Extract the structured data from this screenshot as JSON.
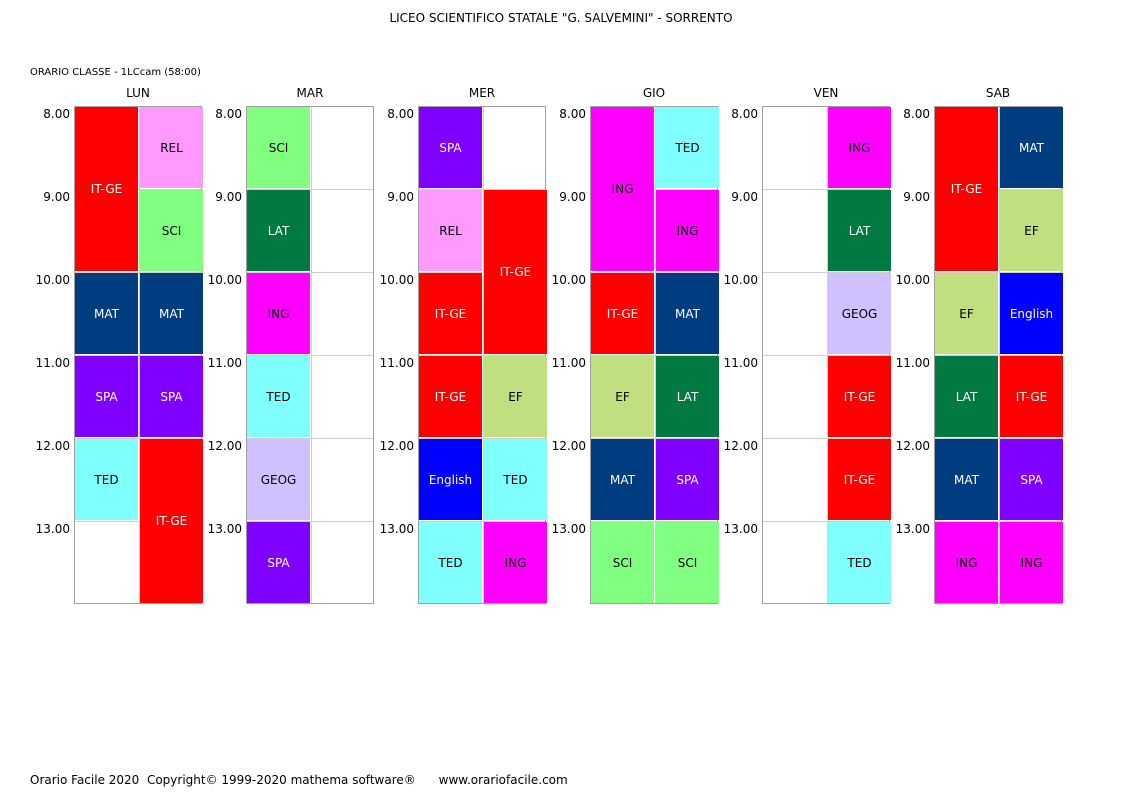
{
  "header": {
    "title": "LICEO SCIENTIFICO STATALE \"G. SALVEMINI\" - SORRENTO",
    "subtitle": "ORARIO CLASSE  -  1LCcam (58:00)"
  },
  "times": [
    "8.00",
    "9.00",
    "10.00",
    "11.00",
    "12.00",
    "13.00"
  ],
  "colors": {
    "IT-GE": {
      "bg": "#ff0000",
      "fg": "#ffffff"
    },
    "REL": {
      "bg": "#ff99ff",
      "fg": "#000000"
    },
    "SCI": {
      "bg": "#80ff80",
      "fg": "#000000"
    },
    "MAT": {
      "bg": "#003c80",
      "fg": "#ffffff"
    },
    "SPA": {
      "bg": "#8000ff",
      "fg": "#ffffff"
    },
    "TED": {
      "bg": "#80ffff",
      "fg": "#000000"
    },
    "LAT": {
      "bg": "#007a40",
      "fg": "#ffffff"
    },
    "ING": {
      "bg": "#ff00ff",
      "fg": "#000000"
    },
    "GEOG": {
      "bg": "#d0c0ff",
      "fg": "#000000"
    },
    "EF": {
      "bg": "#c0e080",
      "fg": "#000000"
    },
    "English": {
      "bg": "#0000ff",
      "fg": "#ffffff"
    }
  },
  "days": [
    {
      "name": "LUN",
      "lessons": [
        {
          "subject": "IT-GE",
          "col": 0,
          "start": 0,
          "span": 2
        },
        {
          "subject": "REL",
          "col": 1,
          "start": 0,
          "span": 1
        },
        {
          "subject": "SCI",
          "col": 1,
          "start": 1,
          "span": 1
        },
        {
          "subject": "MAT",
          "col": 0,
          "start": 2,
          "span": 1
        },
        {
          "subject": "MAT",
          "col": 1,
          "start": 2,
          "span": 1
        },
        {
          "subject": "SPA",
          "col": 0,
          "start": 3,
          "span": 1
        },
        {
          "subject": "SPA",
          "col": 1,
          "start": 3,
          "span": 1
        },
        {
          "subject": "TED",
          "col": 0,
          "start": 4,
          "span": 1
        },
        {
          "subject": "IT-GE",
          "col": 1,
          "start": 4,
          "span": 2
        }
      ]
    },
    {
      "name": "MAR",
      "lessons": [
        {
          "subject": "SCI",
          "col": 0,
          "start": 0,
          "span": 1
        },
        {
          "subject": "LAT",
          "col": 0,
          "start": 1,
          "span": 1
        },
        {
          "subject": "ING",
          "col": 0,
          "start": 2,
          "span": 1
        },
        {
          "subject": "TED",
          "col": 0,
          "start": 3,
          "span": 1
        },
        {
          "subject": "GEOG",
          "col": 0,
          "start": 4,
          "span": 1
        },
        {
          "subject": "SPA",
          "col": 0,
          "start": 5,
          "span": 1
        }
      ]
    },
    {
      "name": "MER",
      "lessons": [
        {
          "subject": "SPA",
          "col": 0,
          "start": 0,
          "span": 1
        },
        {
          "subject": "REL",
          "col": 0,
          "start": 1,
          "span": 1
        },
        {
          "subject": "IT-GE",
          "col": 1,
          "start": 1,
          "span": 2
        },
        {
          "subject": "IT-GE",
          "col": 0,
          "start": 2,
          "span": 1
        },
        {
          "subject": "IT-GE",
          "col": 0,
          "start": 3,
          "span": 1
        },
        {
          "subject": "EF",
          "col": 1,
          "start": 3,
          "span": 1
        },
        {
          "subject": "English",
          "col": 0,
          "start": 4,
          "span": 1
        },
        {
          "subject": "TED",
          "col": 1,
          "start": 4,
          "span": 1
        },
        {
          "subject": "TED",
          "col": 0,
          "start": 5,
          "span": 1
        },
        {
          "subject": "ING",
          "col": 1,
          "start": 5,
          "span": 1
        }
      ]
    },
    {
      "name": "GIO",
      "lessons": [
        {
          "subject": "ING",
          "col": 0,
          "start": 0,
          "span": 2
        },
        {
          "subject": "TED",
          "col": 1,
          "start": 0,
          "span": 1
        },
        {
          "subject": "ING",
          "col": 1,
          "start": 1,
          "span": 1
        },
        {
          "subject": "IT-GE",
          "col": 0,
          "start": 2,
          "span": 1
        },
        {
          "subject": "MAT",
          "col": 1,
          "start": 2,
          "span": 1
        },
        {
          "subject": "EF",
          "col": 0,
          "start": 3,
          "span": 1
        },
        {
          "subject": "LAT",
          "col": 1,
          "start": 3,
          "span": 1
        },
        {
          "subject": "MAT",
          "col": 0,
          "start": 4,
          "span": 1
        },
        {
          "subject": "SPA",
          "col": 1,
          "start": 4,
          "span": 1
        },
        {
          "subject": "SCI",
          "col": 0,
          "start": 5,
          "span": 1
        },
        {
          "subject": "SCI",
          "col": 1,
          "start": 5,
          "span": 1
        }
      ]
    },
    {
      "name": "VEN",
      "lessons": [
        {
          "subject": "ING",
          "col": 1,
          "start": 0,
          "span": 1
        },
        {
          "subject": "LAT",
          "col": 1,
          "start": 1,
          "span": 1
        },
        {
          "subject": "GEOG",
          "col": 1,
          "start": 2,
          "span": 1
        },
        {
          "subject": "IT-GE",
          "col": 1,
          "start": 3,
          "span": 1
        },
        {
          "subject": "IT-GE",
          "col": 1,
          "start": 4,
          "span": 1
        },
        {
          "subject": "TED",
          "col": 1,
          "start": 5,
          "span": 1
        }
      ]
    },
    {
      "name": "SAB",
      "lessons": [
        {
          "subject": "IT-GE",
          "col": 0,
          "start": 0,
          "span": 2
        },
        {
          "subject": "MAT",
          "col": 1,
          "start": 0,
          "span": 1
        },
        {
          "subject": "EF",
          "col": 1,
          "start": 1,
          "span": 1
        },
        {
          "subject": "EF",
          "col": 0,
          "start": 2,
          "span": 1
        },
        {
          "subject": "English",
          "col": 1,
          "start": 2,
          "span": 1
        },
        {
          "subject": "LAT",
          "col": 0,
          "start": 3,
          "span": 1
        },
        {
          "subject": "IT-GE",
          "col": 1,
          "start": 3,
          "span": 1
        },
        {
          "subject": "MAT",
          "col": 0,
          "start": 4,
          "span": 1
        },
        {
          "subject": "SPA",
          "col": 1,
          "start": 4,
          "span": 1
        },
        {
          "subject": "ING",
          "col": 0,
          "start": 5,
          "span": 1
        },
        {
          "subject": "ING",
          "col": 1,
          "start": 5,
          "span": 1
        }
      ]
    }
  ],
  "footer": "Orario Facile 2020  Copyright© 1999-2020 mathema software®      www.orariofacile.com"
}
